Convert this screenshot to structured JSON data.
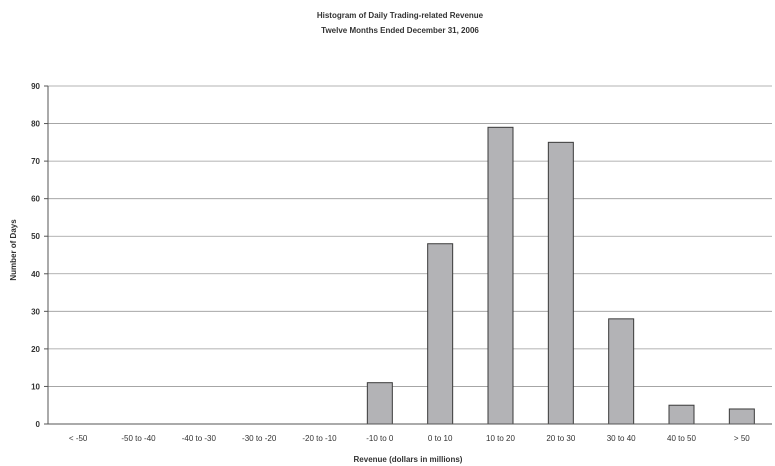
{
  "chart_data": {
    "type": "bar",
    "title": "Histogram of Daily Trading-related Revenue",
    "subtitle": "Twelve Months Ended December 31, 2006",
    "xlabel": "Revenue (dollars in millions)",
    "ylabel": "Number of Days",
    "ylim": [
      0,
      90
    ],
    "yticks": [
      "0",
      "10",
      "20",
      "30",
      "40",
      "50",
      "60",
      "70",
      "80",
      "90"
    ],
    "ytick_values": [
      0,
      10,
      20,
      30,
      40,
      50,
      60,
      70,
      80,
      90
    ],
    "grid": true,
    "legend": "none",
    "categories": [
      "< -50",
      "-50 to -40",
      "-40 to -30",
      "-30 to -20",
      "-20 to -10",
      "-10 to 0",
      "0 to 10",
      "10 to 20",
      "20 to 30",
      "30 to 40",
      "40 to 50",
      "> 50"
    ],
    "values": [
      0,
      0,
      0,
      0,
      0,
      11,
      48,
      79,
      75,
      28,
      5,
      4
    ],
    "bar_color": "#b3b3b6"
  }
}
